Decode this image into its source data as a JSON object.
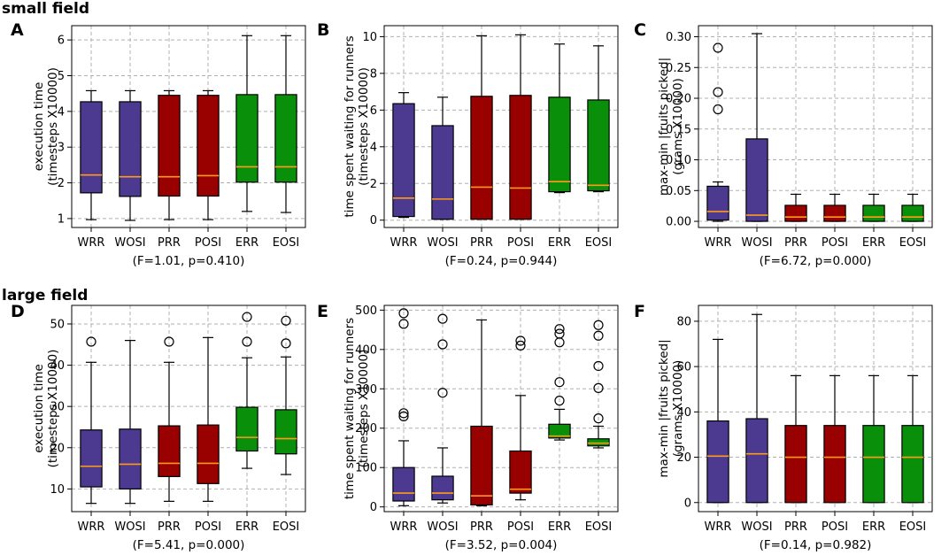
{
  "sections": {
    "small": "small field",
    "large": "large field"
  },
  "colors": {
    "WRR": "#4c3a91",
    "WOSI": "#4c3a91",
    "PRR": "#990000",
    "POSI": "#990000",
    "ERR": "#0a8f0a",
    "EOSI": "#0a8f0a",
    "median": "#ff9a1a",
    "grid": "#b0b0b0"
  },
  "chart_data": [
    {
      "panel": "A",
      "type": "box",
      "categories": [
        "WRR",
        "WOSI",
        "PRR",
        "POSI",
        "ERR",
        "EOSI"
      ],
      "ylabel_lines": [
        "execution time",
        "(timesteps X10000)"
      ],
      "xlabel": "(F=1.01, p=0.410)",
      "ylim": [
        0.75,
        6.4
      ],
      "yticks": [
        1,
        2,
        3,
        4,
        5,
        6
      ],
      "yticklabels": [
        "1",
        "2",
        "3",
        "4",
        "5",
        "6"
      ],
      "boxes": [
        {
          "whislo": 0.97,
          "q1": 1.72,
          "med": 2.22,
          "q3": 4.27,
          "whishi": 4.58,
          "fliers": []
        },
        {
          "whislo": 0.95,
          "q1": 1.62,
          "med": 2.17,
          "q3": 4.27,
          "whishi": 4.58,
          "fliers": []
        },
        {
          "whislo": 0.97,
          "q1": 1.63,
          "med": 2.17,
          "q3": 4.45,
          "whishi": 4.58,
          "fliers": []
        },
        {
          "whislo": 0.97,
          "q1": 1.63,
          "med": 2.2,
          "q3": 4.45,
          "whishi": 4.58,
          "fliers": []
        },
        {
          "whislo": 1.2,
          "q1": 2.02,
          "med": 2.45,
          "q3": 4.47,
          "whishi": 6.12,
          "fliers": []
        },
        {
          "whislo": 1.17,
          "q1": 2.02,
          "med": 2.45,
          "q3": 4.47,
          "whishi": 6.12,
          "fliers": []
        }
      ]
    },
    {
      "panel": "B",
      "type": "box",
      "categories": [
        "WRR",
        "WOSI",
        "PRR",
        "POSI",
        "ERR",
        "EOSI"
      ],
      "ylabel_lines": [
        "time spent waiting for runners",
        "(timesteps X10000)"
      ],
      "xlabel": "(F=0.24, p=0.944)",
      "ylim": [
        -0.4,
        10.6
      ],
      "yticks": [
        0,
        2,
        4,
        6,
        8,
        10
      ],
      "yticklabels": [
        "0",
        "2",
        "4",
        "6",
        "8",
        "10"
      ],
      "boxes": [
        {
          "whislo": 0.15,
          "q1": 0.2,
          "med": 1.2,
          "q3": 6.35,
          "whishi": 6.95,
          "fliers": []
        },
        {
          "whislo": 0.05,
          "q1": 0.05,
          "med": 1.15,
          "q3": 5.15,
          "whishi": 6.7,
          "fliers": []
        },
        {
          "whislo": 0.05,
          "q1": 0.05,
          "med": 1.8,
          "q3": 6.75,
          "whishi": 10.05,
          "fliers": []
        },
        {
          "whislo": 0.05,
          "q1": 0.05,
          "med": 1.75,
          "q3": 6.8,
          "whishi": 10.1,
          "fliers": []
        },
        {
          "whislo": 1.5,
          "q1": 1.55,
          "med": 2.1,
          "q3": 6.7,
          "whishi": 9.6,
          "fliers": []
        },
        {
          "whislo": 1.55,
          "q1": 1.6,
          "med": 1.9,
          "q3": 6.55,
          "whishi": 9.5,
          "fliers": []
        }
      ]
    },
    {
      "panel": "C",
      "type": "box",
      "categories": [
        "WRR",
        "WOSI",
        "PRR",
        "POSI",
        "ERR",
        "EOSI"
      ],
      "ylabel_lines": [
        "max-min |fruits picked|",
        "(grams X10000)"
      ],
      "xlabel": "(F=6.72, p=0.000)",
      "ylim": [
        -0.01,
        0.318
      ],
      "yticks": [
        0,
        0.05,
        0.1,
        0.15,
        0.2,
        0.25,
        0.3
      ],
      "yticklabels": [
        "0.00",
        "0.05",
        "0.10",
        "0.15",
        "0.20",
        "0.25",
        "0.30"
      ],
      "boxes": [
        {
          "whislo": 0.0,
          "q1": 0.002,
          "med": 0.016,
          "q3": 0.057,
          "whishi": 0.064,
          "fliers": [
            0.182,
            0.21,
            0.282
          ]
        },
        {
          "whislo": 0.0,
          "q1": 0.0,
          "med": 0.01,
          "q3": 0.134,
          "whishi": 0.305,
          "fliers": []
        },
        {
          "whislo": 0.0,
          "q1": 0.0,
          "med": 0.007,
          "q3": 0.026,
          "whishi": 0.044,
          "fliers": []
        },
        {
          "whislo": 0.0,
          "q1": 0.0,
          "med": 0.007,
          "q3": 0.026,
          "whishi": 0.044,
          "fliers": []
        },
        {
          "whislo": 0.0,
          "q1": 0.0,
          "med": 0.007,
          "q3": 0.026,
          "whishi": 0.044,
          "fliers": []
        },
        {
          "whislo": 0.0,
          "q1": 0.0,
          "med": 0.007,
          "q3": 0.026,
          "whishi": 0.044,
          "fliers": []
        }
      ]
    },
    {
      "panel": "D",
      "type": "box",
      "categories": [
        "WRR",
        "WOSI",
        "PRR",
        "POSI",
        "ERR",
        "EOSI"
      ],
      "ylabel_lines": [
        "execution time",
        "(timesteps X10000)"
      ],
      "xlabel": "(F=5.41, p=0.000)",
      "ylim": [
        4.5,
        54.5
      ],
      "yticks": [
        10,
        20,
        30,
        40,
        50
      ],
      "yticklabels": [
        "10",
        "20",
        "30",
        "40",
        "50"
      ],
      "boxes": [
        {
          "whislo": 6.5,
          "q1": 10.5,
          "med": 15.5,
          "q3": 24.3,
          "whishi": 40.7,
          "fliers": [
            45.7
          ]
        },
        {
          "whislo": 6.5,
          "q1": 10.0,
          "med": 16.0,
          "q3": 24.5,
          "whishi": 46.0,
          "fliers": []
        },
        {
          "whislo": 7.0,
          "q1": 13.0,
          "med": 16.2,
          "q3": 25.3,
          "whishi": 40.7,
          "fliers": [
            45.7
          ]
        },
        {
          "whislo": 7.0,
          "q1": 11.3,
          "med": 16.2,
          "q3": 25.5,
          "whishi": 46.7,
          "fliers": []
        },
        {
          "whislo": 15.0,
          "q1": 19.2,
          "med": 22.5,
          "q3": 29.8,
          "whishi": 41.8,
          "fliers": [
            45.7,
            51.7
          ]
        },
        {
          "whislo": 13.5,
          "q1": 18.5,
          "med": 22.2,
          "q3": 29.2,
          "whishi": 42.0,
          "fliers": [
            45.3,
            50.8
          ]
        }
      ]
    },
    {
      "panel": "E",
      "type": "box",
      "categories": [
        "WRR",
        "WOSI",
        "PRR",
        "POSI",
        "ERR",
        "EOSI"
      ],
      "ylabel_lines": [
        "time spent waiting for runners",
        "(timesteps X10000)"
      ],
      "xlabel": "(F=3.52, p=0.004)",
      "ylim": [
        -12,
        512
      ],
      "yticks": [
        0,
        100,
        200,
        300,
        400,
        500
      ],
      "yticklabels": [
        "0",
        "100",
        "200",
        "300",
        "400",
        "500"
      ],
      "boxes": [
        {
          "whislo": 3,
          "q1": 15,
          "med": 35,
          "q3": 100,
          "whishi": 168,
          "fliers": [
            230,
            238,
            465,
            492
          ]
        },
        {
          "whislo": 10,
          "q1": 18,
          "med": 35,
          "q3": 78,
          "whishi": 150,
          "fliers": [
            290,
            413,
            478
          ]
        },
        {
          "whislo": 3,
          "q1": 5,
          "med": 28,
          "q3": 205,
          "whishi": 475,
          "fliers": []
        },
        {
          "whislo": 18,
          "q1": 35,
          "med": 45,
          "q3": 142,
          "whishi": 283,
          "fliers": [
            410,
            422
          ]
        },
        {
          "whislo": 170,
          "q1": 175,
          "med": 180,
          "q3": 210,
          "whishi": 248,
          "fliers": [
            270,
            317,
            418,
            440,
            452
          ]
        },
        {
          "whislo": 150,
          "q1": 155,
          "med": 162,
          "q3": 173,
          "whishi": 205,
          "fliers": [
            225,
            302,
            358,
            435,
            462
          ]
        }
      ]
    },
    {
      "panel": "F",
      "type": "box",
      "categories": [
        "WRR",
        "WOSI",
        "PRR",
        "POSI",
        "ERR",
        "EOSI"
      ],
      "ylabel_lines": [
        "max-min |fruits picked|",
        "(grams X10000)"
      ],
      "xlabel": "(F=0.14, p=0.982)",
      "ylim": [
        -4,
        87
      ],
      "yticks": [
        0,
        20,
        40,
        60,
        80
      ],
      "yticklabels": [
        "0",
        "20",
        "40",
        "60",
        "80"
      ],
      "boxes": [
        {
          "whislo": 0,
          "q1": 0,
          "med": 20.5,
          "q3": 36,
          "whishi": 72,
          "fliers": []
        },
        {
          "whislo": 0,
          "q1": 0,
          "med": 21.5,
          "q3": 37,
          "whishi": 83,
          "fliers": []
        },
        {
          "whislo": 0,
          "q1": 0,
          "med": 20,
          "q3": 34,
          "whishi": 56,
          "fliers": []
        },
        {
          "whislo": 0,
          "q1": 0,
          "med": 20,
          "q3": 34,
          "whishi": 56,
          "fliers": []
        },
        {
          "whislo": 0,
          "q1": 0,
          "med": 20,
          "q3": 34,
          "whishi": 56,
          "fliers": []
        },
        {
          "whislo": 0,
          "q1": 0,
          "med": 20,
          "q3": 34,
          "whishi": 56,
          "fliers": []
        }
      ]
    }
  ]
}
